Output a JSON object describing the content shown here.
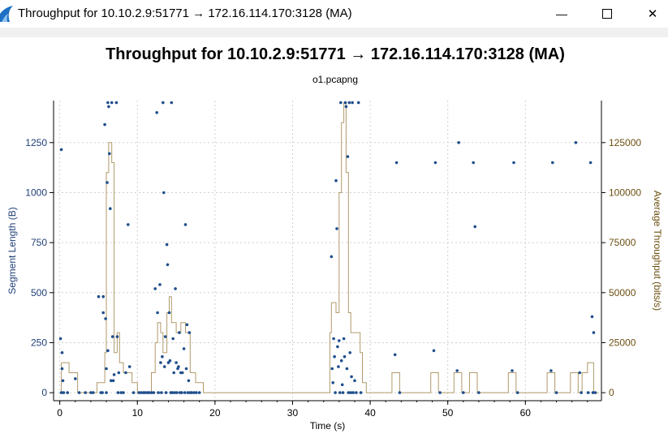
{
  "window": {
    "title": "Throughput for 10.10.2.9:51771 → 172.16.114.170:3128 (MA)",
    "minimize_glyph": "—",
    "maximize_glyph": "☐",
    "close_glyph": "✕"
  },
  "colors": {
    "segments": "#1f4e8c",
    "throughput": "#b19a6b",
    "left_axis_text": "#1f3f77",
    "right_axis_text": "#6b4f10",
    "grid": "#cfcfcf"
  },
  "chart_data": {
    "type": "scatter",
    "title": "Throughput for 10.10.2.9:51771 → 172.16.114.170:3128 (MA)",
    "subtitle": "o1.pcapng",
    "xlabel": "Time (s)",
    "ylabel": "Segment Length (B)",
    "y2label": "Average Throughput (bits/s)",
    "xlim": [
      -0.8,
      69.8
    ],
    "ylim": [
      -40,
      1460
    ],
    "y2lim": [
      -4000,
      146000
    ],
    "xticks": [
      0,
      10,
      20,
      30,
      40,
      50,
      60
    ],
    "yticks": [
      0,
      250,
      500,
      750,
      1000,
      1250
    ],
    "y2ticks": [
      0,
      25000,
      50000,
      75000,
      100000,
      125000
    ],
    "grid": true,
    "series": [
      {
        "name": "Segment Length",
        "axis": "left",
        "style": "points",
        "points": [
          [
            0.1,
            270
          ],
          [
            0.2,
            1215
          ],
          [
            0.3,
            200
          ],
          [
            0.3,
            120
          ],
          [
            0.4,
            60
          ],
          [
            0.5,
            0
          ],
          [
            0.2,
            0
          ],
          [
            1.0,
            0
          ],
          [
            2.0,
            70
          ],
          [
            2.5,
            0
          ],
          [
            3.3,
            0
          ],
          [
            4.0,
            0
          ],
          [
            4.3,
            0
          ],
          [
            5.0,
            480
          ],
          [
            5.3,
            0
          ],
          [
            5.5,
            0
          ],
          [
            5.6,
            480
          ],
          [
            5.6,
            400
          ],
          [
            5.8,
            1340
          ],
          [
            5.9,
            370
          ],
          [
            6.0,
            120
          ],
          [
            6.0,
            0
          ],
          [
            6.1,
            1050
          ],
          [
            6.2,
            210
          ],
          [
            6.2,
            1450
          ],
          [
            6.3,
            1430
          ],
          [
            6.4,
            1195
          ],
          [
            6.5,
            920
          ],
          [
            6.6,
            60
          ],
          [
            6.7,
            1450
          ],
          [
            6.8,
            280
          ],
          [
            6.9,
            60
          ],
          [
            7.0,
            90
          ],
          [
            7.3,
            1450
          ],
          [
            7.4,
            280
          ],
          [
            7.5,
            0
          ],
          [
            7.6,
            100
          ],
          [
            7.9,
            0
          ],
          [
            8.2,
            0
          ],
          [
            8.5,
            100
          ],
          [
            8.8,
            840
          ],
          [
            9.0,
            130
          ],
          [
            9.5,
            0
          ],
          [
            10.2,
            0
          ],
          [
            10.5,
            0
          ],
          [
            10.8,
            0
          ],
          [
            11.0,
            0
          ],
          [
            11.3,
            0
          ],
          [
            11.5,
            0
          ],
          [
            11.8,
            0
          ],
          [
            12.1,
            0
          ],
          [
            12.3,
            520
          ],
          [
            12.5,
            1400
          ],
          [
            12.6,
            400
          ],
          [
            12.7,
            0
          ],
          [
            12.9,
            540
          ],
          [
            13.0,
            150
          ],
          [
            13.1,
            0
          ],
          [
            13.2,
            180
          ],
          [
            13.3,
            1450
          ],
          [
            13.4,
            1000
          ],
          [
            13.5,
            130
          ],
          [
            13.6,
            280
          ],
          [
            13.7,
            0
          ],
          [
            13.8,
            740
          ],
          [
            13.9,
            640
          ],
          [
            14.0,
            150
          ],
          [
            14.1,
            400
          ],
          [
            14.2,
            160
          ],
          [
            14.3,
            0
          ],
          [
            14.4,
            1450
          ],
          [
            14.5,
            0
          ],
          [
            14.6,
            270
          ],
          [
            14.7,
            100
          ],
          [
            14.8,
            0
          ],
          [
            14.9,
            520
          ],
          [
            15.0,
            150
          ],
          [
            15.1,
            0
          ],
          [
            15.2,
            120
          ],
          [
            15.3,
            130
          ],
          [
            15.4,
            300
          ],
          [
            15.5,
            0
          ],
          [
            15.6,
            100
          ],
          [
            15.7,
            0
          ],
          [
            15.8,
            100
          ],
          [
            16.0,
            220
          ],
          [
            16.1,
            0
          ],
          [
            16.2,
            840
          ],
          [
            16.3,
            120
          ],
          [
            16.4,
            340
          ],
          [
            16.5,
            0
          ],
          [
            16.6,
            60
          ],
          [
            16.7,
            300
          ],
          [
            16.8,
            0
          ],
          [
            17.0,
            0
          ],
          [
            17.3,
            0
          ],
          [
            17.6,
            0
          ],
          [
            18.0,
            0
          ],
          [
            35.0,
            680
          ],
          [
            35.1,
            120
          ],
          [
            35.2,
            50
          ],
          [
            35.3,
            270
          ],
          [
            35.4,
            180
          ],
          [
            35.5,
            0
          ],
          [
            35.6,
            1060
          ],
          [
            35.7,
            820
          ],
          [
            35.8,
            230
          ],
          [
            35.9,
            130
          ],
          [
            36.0,
            260
          ],
          [
            36.1,
            0
          ],
          [
            36.2,
            1450
          ],
          [
            36.3,
            160
          ],
          [
            36.4,
            40
          ],
          [
            36.5,
            0
          ],
          [
            36.6,
            270
          ],
          [
            36.7,
            180
          ],
          [
            36.8,
            1450
          ],
          [
            36.9,
            1430
          ],
          [
            37.0,
            120
          ],
          [
            37.1,
            1180
          ],
          [
            37.2,
            0
          ],
          [
            37.3,
            1450
          ],
          [
            37.4,
            200
          ],
          [
            37.5,
            0
          ],
          [
            37.6,
            80
          ],
          [
            37.7,
            1450
          ],
          [
            37.8,
            0
          ],
          [
            38.0,
            60
          ],
          [
            38.2,
            0
          ],
          [
            38.5,
            1450
          ],
          [
            38.8,
            0
          ],
          [
            43.2,
            190
          ],
          [
            43.4,
            1150
          ],
          [
            43.8,
            0
          ],
          [
            48.2,
            210
          ],
          [
            48.4,
            1150
          ],
          [
            49.0,
            0
          ],
          [
            51.2,
            110
          ],
          [
            51.4,
            1250
          ],
          [
            52.0,
            0
          ],
          [
            53.3,
            1150
          ],
          [
            53.5,
            830
          ],
          [
            54.0,
            0
          ],
          [
            58.3,
            110
          ],
          [
            58.5,
            1150
          ],
          [
            59.0,
            0
          ],
          [
            63.3,
            110
          ],
          [
            63.5,
            1150
          ],
          [
            64.0,
            0
          ],
          [
            66.5,
            1250
          ],
          [
            67.0,
            100
          ],
          [
            67.2,
            0
          ],
          [
            68.1,
            0
          ],
          [
            68.4,
            1150
          ],
          [
            68.6,
            380
          ],
          [
            68.8,
            300
          ],
          [
            68.7,
            0
          ],
          [
            69.0,
            0
          ]
        ]
      },
      {
        "name": "Average Throughput",
        "axis": "right",
        "style": "step",
        "points": [
          [
            0,
            0
          ],
          [
            0.2,
            0
          ],
          [
            0.2,
            15000
          ],
          [
            1.2,
            15000
          ],
          [
            1.2,
            10000
          ],
          [
            2.3,
            10000
          ],
          [
            2.3,
            0
          ],
          [
            4.8,
            0
          ],
          [
            4.8,
            5000
          ],
          [
            5.8,
            5000
          ],
          [
            5.8,
            20000
          ],
          [
            6.0,
            20000
          ],
          [
            6.0,
            110000
          ],
          [
            6.3,
            110000
          ],
          [
            6.3,
            125000
          ],
          [
            6.7,
            125000
          ],
          [
            6.7,
            115000
          ],
          [
            7.0,
            115000
          ],
          [
            7.0,
            20000
          ],
          [
            7.4,
            20000
          ],
          [
            7.4,
            30000
          ],
          [
            7.7,
            30000
          ],
          [
            7.7,
            15000
          ],
          [
            8.2,
            15000
          ],
          [
            8.2,
            10000
          ],
          [
            9.3,
            10000
          ],
          [
            9.3,
            5000
          ],
          [
            10.0,
            5000
          ],
          [
            10.0,
            0
          ],
          [
            11.8,
            0
          ],
          [
            11.8,
            10000
          ],
          [
            12.3,
            10000
          ],
          [
            12.3,
            25000
          ],
          [
            12.6,
            25000
          ],
          [
            12.6,
            35000
          ],
          [
            13.0,
            35000
          ],
          [
            13.0,
            30000
          ],
          [
            13.3,
            30000
          ],
          [
            13.3,
            20000
          ],
          [
            13.8,
            20000
          ],
          [
            13.8,
            40000
          ],
          [
            14.1,
            40000
          ],
          [
            14.1,
            48000
          ],
          [
            14.4,
            48000
          ],
          [
            14.4,
            35000
          ],
          [
            15.0,
            35000
          ],
          [
            15.0,
            30000
          ],
          [
            15.6,
            30000
          ],
          [
            15.6,
            35000
          ],
          [
            16.2,
            35000
          ],
          [
            16.2,
            30000
          ],
          [
            16.8,
            30000
          ],
          [
            16.8,
            10000
          ],
          [
            17.5,
            10000
          ],
          [
            17.5,
            5000
          ],
          [
            18.5,
            5000
          ],
          [
            18.5,
            0
          ],
          [
            34.8,
            0
          ],
          [
            34.8,
            30000
          ],
          [
            35.0,
            30000
          ],
          [
            35.0,
            45000
          ],
          [
            35.6,
            45000
          ],
          [
            35.6,
            40000
          ],
          [
            36.0,
            40000
          ],
          [
            36.0,
            100000
          ],
          [
            36.3,
            100000
          ],
          [
            36.3,
            135000
          ],
          [
            36.6,
            135000
          ],
          [
            36.6,
            145000
          ],
          [
            36.9,
            145000
          ],
          [
            36.9,
            110000
          ],
          [
            37.2,
            110000
          ],
          [
            37.2,
            40000
          ],
          [
            37.5,
            40000
          ],
          [
            37.5,
            30000
          ],
          [
            38.7,
            30000
          ],
          [
            38.7,
            20000
          ],
          [
            39.0,
            20000
          ],
          [
            39.0,
            5000
          ],
          [
            39.5,
            5000
          ],
          [
            39.5,
            0
          ],
          [
            42.8,
            0
          ],
          [
            42.8,
            10000
          ],
          [
            43.8,
            10000
          ],
          [
            43.8,
            0
          ],
          [
            47.8,
            0
          ],
          [
            47.8,
            10000
          ],
          [
            48.8,
            10000
          ],
          [
            48.8,
            0
          ],
          [
            50.8,
            0
          ],
          [
            50.8,
            10000
          ],
          [
            51.8,
            10000
          ],
          [
            51.8,
            0
          ],
          [
            52.8,
            0
          ],
          [
            52.8,
            10000
          ],
          [
            53.8,
            10000
          ],
          [
            53.8,
            0
          ],
          [
            57.8,
            0
          ],
          [
            57.8,
            10000
          ],
          [
            58.8,
            10000
          ],
          [
            58.8,
            0
          ],
          [
            62.8,
            0
          ],
          [
            62.8,
            10000
          ],
          [
            63.8,
            10000
          ],
          [
            63.8,
            0
          ],
          [
            65.8,
            0
          ],
          [
            65.8,
            10000
          ],
          [
            66.8,
            10000
          ],
          [
            66.8,
            0
          ],
          [
            67.3,
            0
          ],
          [
            67.3,
            10000
          ],
          [
            68.0,
            10000
          ],
          [
            68.0,
            15000
          ],
          [
            68.8,
            15000
          ],
          [
            68.8,
            0
          ],
          [
            69.4,
            0
          ]
        ]
      }
    ]
  }
}
